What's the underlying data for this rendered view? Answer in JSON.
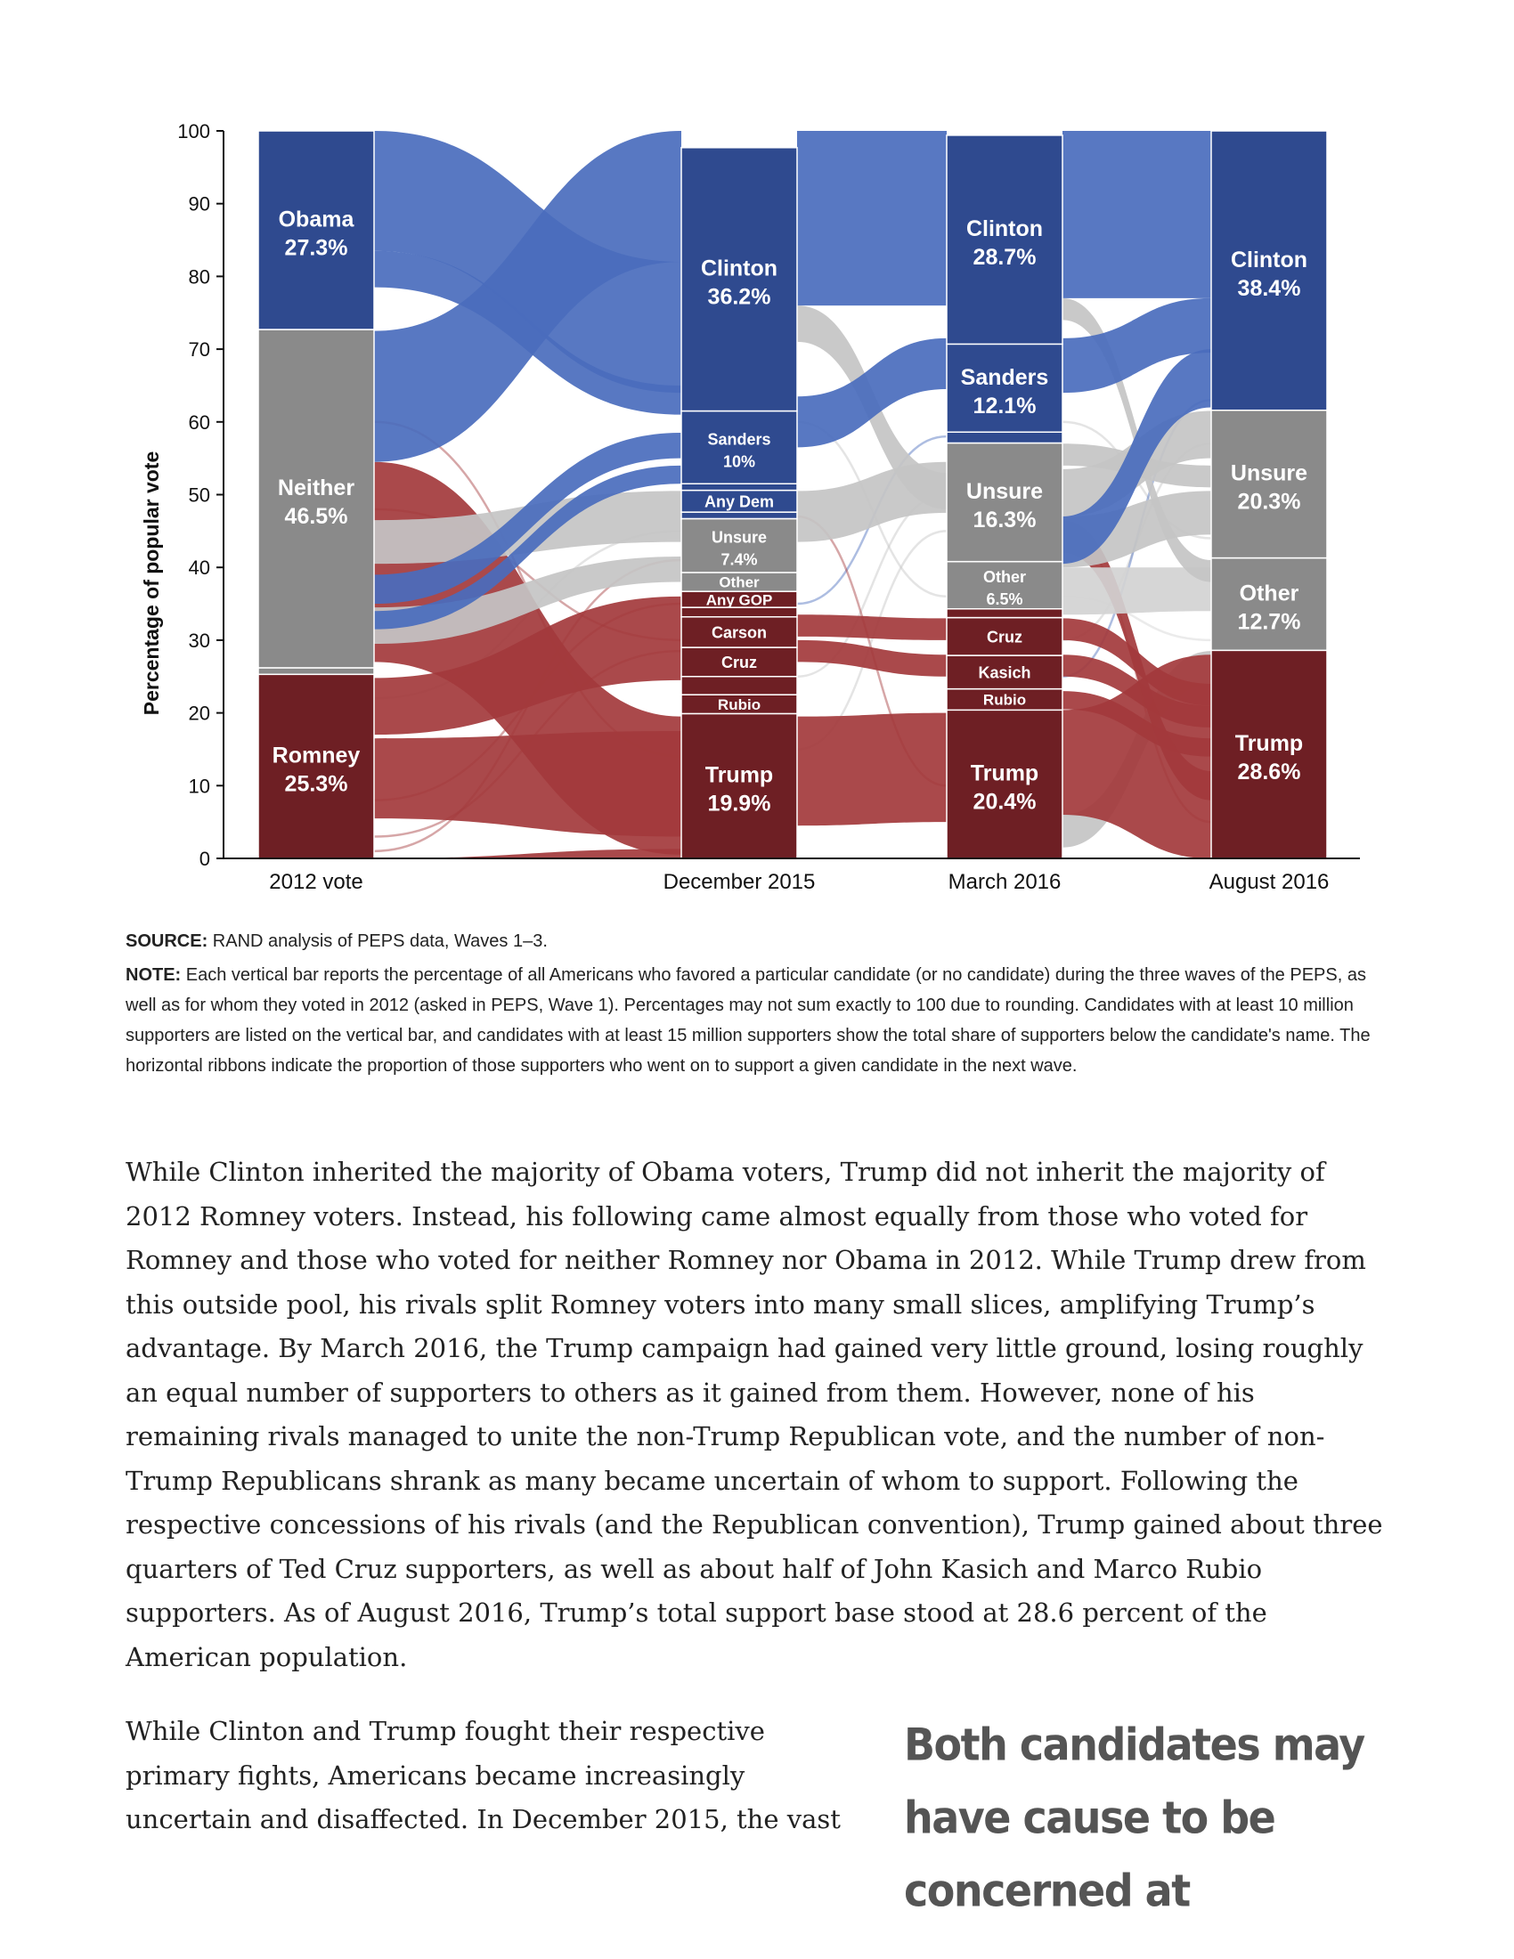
{
  "chart_data": {
    "type": "alluvial",
    "title": "",
    "ylabel": "Percentage of popular vote",
    "ylim": [
      0,
      100
    ],
    "yticks": [
      0,
      10,
      20,
      30,
      40,
      50,
      60,
      70,
      80,
      90,
      100
    ],
    "waves": [
      {
        "name": "2012 vote",
        "segments": [
          {
            "name": "Romney",
            "value": 25.3,
            "pct": "25.3%",
            "party": "rep"
          },
          {
            "name": "",
            "value": 0.9,
            "party": "other"
          },
          {
            "name": "Neither",
            "value": 46.5,
            "pct": "46.5%",
            "party": "unsure"
          },
          {
            "name": "Obama",
            "value": 27.3,
            "pct": "27.3%",
            "party": "dem"
          }
        ]
      },
      {
        "name": "December 2015",
        "segments": [
          {
            "name": "Trump",
            "value": 19.9,
            "pct": "19.9%",
            "party": "rep"
          },
          {
            "name": "Rubio",
            "value": 2.6,
            "party": "rep"
          },
          {
            "name": "",
            "value": 2.5,
            "party": "rep"
          },
          {
            "name": "Cruz",
            "value": 4.0,
            "party": "rep"
          },
          {
            "name": "Carson",
            "value": 4.2,
            "party": "rep"
          },
          {
            "name": "",
            "value": 1.3,
            "party": "rep"
          },
          {
            "name": "Any GOP",
            "value": 2.2,
            "party": "rep"
          },
          {
            "name": "Other",
            "value": 2.6,
            "party": "other"
          },
          {
            "name": "Unsure",
            "value": 7.4,
            "pct": "7.4%",
            "party": "unsure"
          },
          {
            "name": "",
            "value": 0.9,
            "party": "dem"
          },
          {
            "name": "Any Dem",
            "value": 3.0,
            "party": "dem"
          },
          {
            "name": "",
            "value": 0.9,
            "party": "dem"
          },
          {
            "name": "Sanders",
            "value": 10,
            "pct": "10%",
            "party": "dem"
          },
          {
            "name": "Clinton",
            "value": 36.2,
            "pct": "36.2%",
            "party": "dem"
          }
        ]
      },
      {
        "name": "March 2016",
        "segments": [
          {
            "name": "Trump",
            "value": 20.4,
            "pct": "20.4%",
            "party": "rep"
          },
          {
            "name": "Rubio",
            "value": 2.9,
            "party": "rep"
          },
          {
            "name": "Kasich",
            "value": 4.6,
            "party": "rep"
          },
          {
            "name": "Cruz",
            "value": 5.2,
            "party": "rep"
          },
          {
            "name": "",
            "value": 1.2,
            "party": "rep"
          },
          {
            "name": "Other",
            "value": 6.5,
            "pct": "6.5%",
            "party": "other"
          },
          {
            "name": "Unsure",
            "value": 16.3,
            "pct": "16.3%",
            "party": "unsure"
          },
          {
            "name": "",
            "value": 1.5,
            "party": "dem"
          },
          {
            "name": "Sanders",
            "value": 12.1,
            "pct": "12.1%",
            "party": "dem"
          },
          {
            "name": "Clinton",
            "value": 28.7,
            "pct": "28.7%",
            "party": "dem"
          }
        ]
      },
      {
        "name": "August 2016",
        "segments": [
          {
            "name": "Trump",
            "value": 28.6,
            "pct": "28.6%",
            "party": "rep"
          },
          {
            "name": "Other",
            "value": 12.7,
            "pct": "12.7%",
            "party": "other"
          },
          {
            "name": "Unsure",
            "value": 20.3,
            "pct": "20.3%",
            "party": "unsure"
          },
          {
            "name": "Clinton",
            "value": 38.4,
            "pct": "38.4%",
            "party": "dem"
          }
        ]
      }
    ],
    "ribbons": [
      {
        "from": [
          0,
          0,
          0
        ],
        "to": [
          1,
          0,
          1.3
        ],
        "party": "rep"
      },
      {
        "from": [
          0,
          5.5,
          16.5
        ],
        "to": [
          1,
          3.0,
          17.5
        ],
        "party": "rep"
      },
      {
        "from": [
          0,
          17.0,
          24.8
        ],
        "to": [
          1,
          24.5,
          36.0
        ],
        "party": "rep"
      },
      {
        "from": [
          0,
          27.0,
          54.5
        ],
        "to": [
          1,
          0.5,
          19.5
        ],
        "party": "rep"
      },
      {
        "from": [
          0,
          29.5,
          34.5
        ],
        "to": [
          1,
          38.0,
          41.5
        ],
        "party": "unsure"
      },
      {
        "from": [
          0,
          40.5,
          46.5
        ],
        "to": [
          1,
          43.5,
          50.5
        ],
        "party": "unsure"
      },
      {
        "from": [
          0,
          31.5,
          34.0
        ],
        "to": [
          1,
          51.5,
          54.0
        ],
        "party": "dem"
      },
      {
        "from": [
          0,
          35.0,
          39.0
        ],
        "to": [
          1,
          55.0,
          58.5
        ],
        "party": "dem"
      },
      {
        "from": [
          0,
          54.5,
          72.5
        ],
        "to": [
          1,
          82.0,
          100
        ],
        "party": "dem"
      },
      {
        "from": [
          0,
          78.5,
          83.5
        ],
        "to": [
          1,
          61.0,
          65.0
        ],
        "party": "dem"
      },
      {
        "from": [
          0,
          83.5,
          100
        ],
        "to": [
          1,
          64.0,
          82.0
        ],
        "party": "dem"
      },
      {
        "from": [
          1,
          4.5,
          19.5
        ],
        "to": [
          2,
          5.0,
          20.0
        ],
        "party": "rep"
      },
      {
        "from": [
          1,
          27.0,
          30.0
        ],
        "to": [
          2,
          25.0,
          28.0
        ],
        "party": "rep"
      },
      {
        "from": [
          1,
          30.5,
          33.5
        ],
        "to": [
          2,
          30.0,
          33.0
        ],
        "party": "rep"
      },
      {
        "from": [
          1,
          43.5,
          50.5
        ],
        "to": [
          2,
          47.5,
          54.5
        ],
        "party": "unsure"
      },
      {
        "from": [
          1,
          71.0,
          76.0
        ],
        "to": [
          2,
          48.0,
          53.0
        ],
        "party": "unsure"
      },
      {
        "from": [
          1,
          56.5,
          63.5
        ],
        "to": [
          2,
          64.5,
          71.5
        ],
        "party": "dem"
      },
      {
        "from": [
          1,
          76.0,
          100
        ],
        "to": [
          2,
          76.0,
          100
        ],
        "party": "dem"
      },
      {
        "from": [
          2,
          1.5,
          6.0
        ],
        "to": [
          3,
          24.0,
          28.5
        ],
        "party": "unsure"
      },
      {
        "from": [
          2,
          6.0,
          20.4
        ],
        "to": [
          3,
          0,
          28.0
        ],
        "party": "rep"
      },
      {
        "from": [
          2,
          20.5,
          23.0
        ],
        "to": [
          3,
          14.0,
          16.5
        ],
        "party": "rep"
      },
      {
        "from": [
          2,
          25.0,
          28.0
        ],
        "to": [
          3,
          18.0,
          21.0
        ],
        "party": "rep"
      },
      {
        "from": [
          2,
          30.0,
          33.0
        ],
        "to": [
          3,
          21.0,
          24.0
        ],
        "party": "rep"
      },
      {
        "from": [
          2,
          42.0,
          46.5
        ],
        "to": [
          3,
          8.0,
          12.0
        ],
        "party": "rep"
      },
      {
        "from": [
          2,
          33.5,
          40.0
        ],
        "to": [
          3,
          34.0,
          40.0
        ],
        "party": "other"
      },
      {
        "from": [
          2,
          40.0,
          47.0
        ],
        "to": [
          3,
          44.5,
          50.5
        ],
        "party": "unsure"
      },
      {
        "from": [
          2,
          47.0,
          53.5
        ],
        "to": [
          3,
          55.0,
          61.5
        ],
        "party": "unsure"
      },
      {
        "from": [
          2,
          54.0,
          57.0
        ],
        "to": [
          3,
          51.0,
          54.0
        ],
        "party": "unsure"
      },
      {
        "from": [
          2,
          74.0,
          77.0
        ],
        "to": [
          3,
          38.0,
          41.0
        ],
        "party": "unsure"
      },
      {
        "from": [
          2,
          40.5,
          47.0
        ],
        "to": [
          3,
          62.0,
          70.0
        ],
        "party": "dem"
      },
      {
        "from": [
          2,
          64.0,
          71.5
        ],
        "to": [
          3,
          69.5,
          77.0
        ],
        "party": "dem"
      },
      {
        "from": [
          2,
          77.0,
          100
        ],
        "to": [
          3,
          77.0,
          100
        ],
        "party": "dem"
      }
    ],
    "colors": {
      "dem": "#2f4a8f",
      "dem_ribbon": "#4a6cbd",
      "rep": "#6e1f24",
      "rep_ribbon": "#a33a3c",
      "unsure": "#8a8a8a",
      "unsure_ribbon": "#c4c4c4",
      "other": "#8a8a8a",
      "other_ribbon": "#d2d2d2"
    },
    "grid": false,
    "legend": "none"
  },
  "notes": {
    "source_label": "SOURCE:",
    "source_text": " RAND analysis of PEPS data, Waves 1–3.",
    "note_label": "NOTE:",
    "note_text": " Each vertical bar reports the percentage of all Americans who favored a particular candidate (or no candidate) during the three waves of the PEPS, as well as for whom they voted in 2012 (asked in PEPS, Wave 1). Percentages may not sum exactly to 100 due to rounding. Candidates with at least 10 million supporters are listed on the vertical bar, and candidates with at least 15 million supporters show the total share of supporters below the candidate's name. The horizontal ribbons indicate the proportion of those supporters who went on to support a given candidate in the next wave."
  },
  "article": {
    "paragraph1": "While Clinton inherited the majority of Obama voters, Trump did not inherit the majority of 2012 Romney voters. Instead, his following came almost equally from those who voted for Romney and those who voted for neither Romney nor Obama in 2012. While Trump drew from this outside pool, his rivals split Romney voters into many small slices, amplifying Trump’s advantage. By March 2016, the Trump campaign had gained very little ground, losing roughly an equal number of supporters to others as it gained from them. However, none of his remaining rivals managed to unite the non-Trump Republican vote, and the number of non-Trump Republicans shrank as many became uncertain of whom to support. Following the respective concessions of his rivals (and the Republican convention), Trump gained about three quarters of Ted Cruz supporters, as well as about half of John Kasich and Marco Rubio supporters. As of August 2016, Trump’s total support base stood at 28.6 percent of the American population.",
    "paragraph2": "While Clinton and Trump fought their respective primary fights, Americans became increasingly uncertain and disaffected. In December 2015, the vast",
    "pull_quote": "Both candidates may have cause to be concerned at"
  }
}
